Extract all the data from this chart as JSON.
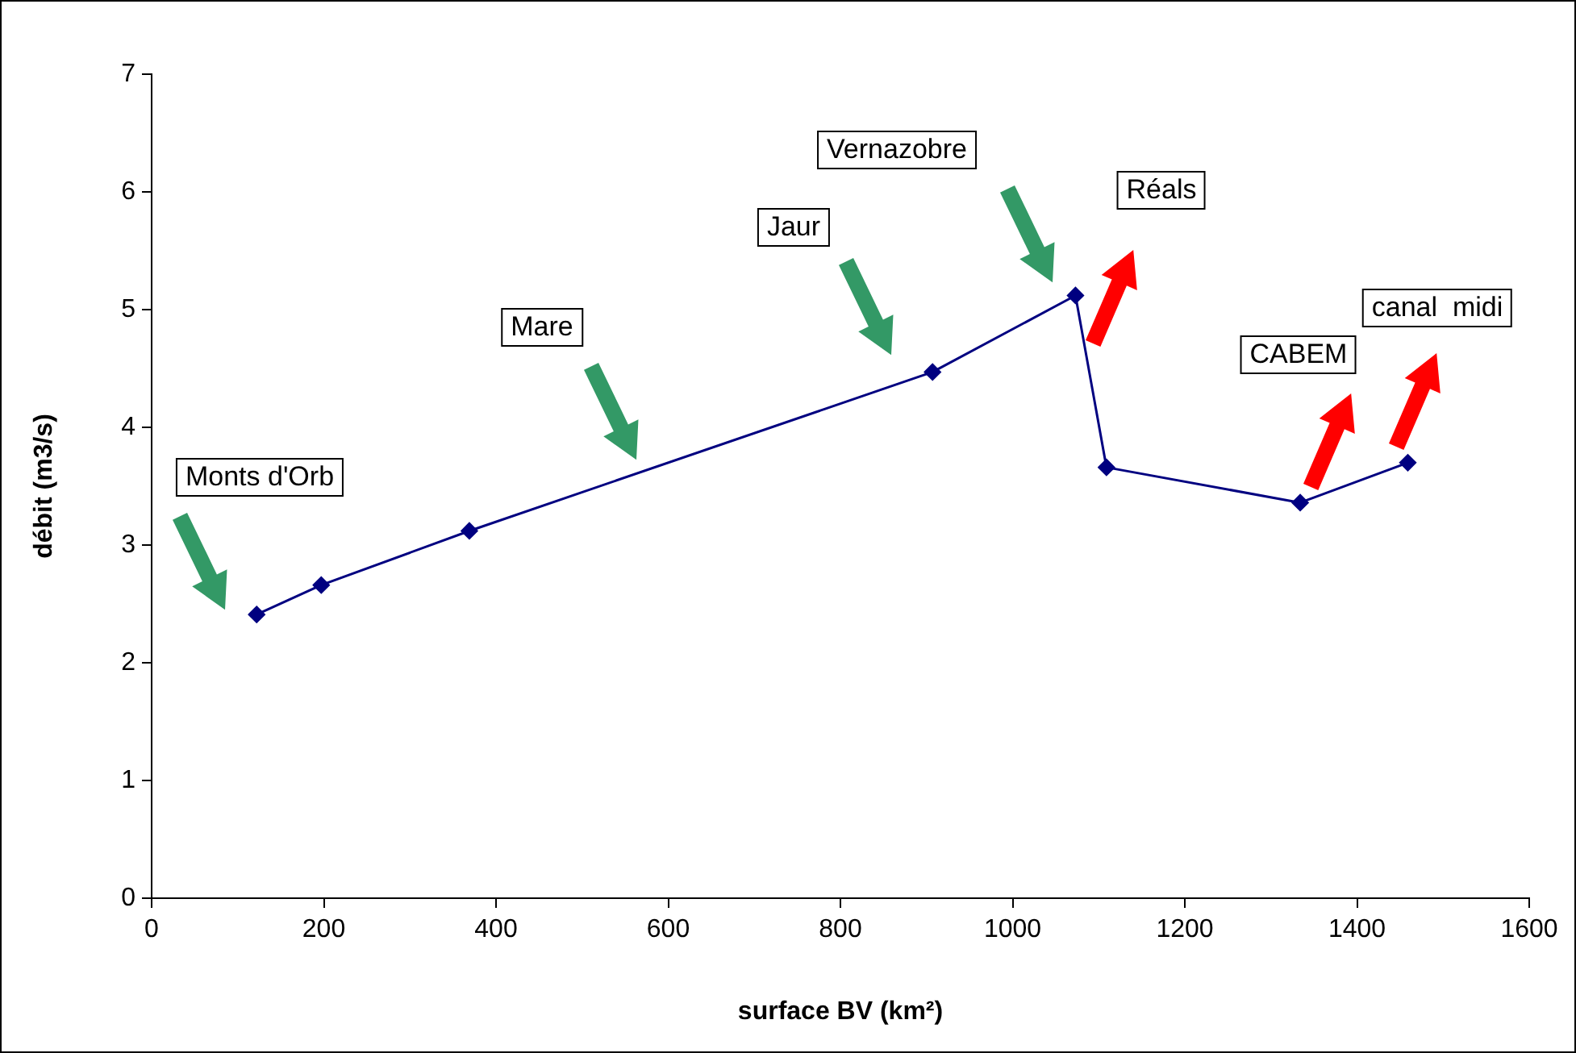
{
  "chart_data": {
    "type": "line",
    "xlabel": "surface BV (km²)",
    "ylabel": "débit (m3/s)",
    "x": [
      122,
      197,
      369,
      907,
      1073,
      1109,
      1334,
      1459
    ],
    "series": [
      {
        "color": "#000080",
        "values": [
          2.41,
          2.66,
          3.12,
          4.47,
          5.12,
          3.66,
          3.36,
          3.7
        ]
      }
    ],
    "xlim": [
      0,
      1600
    ],
    "xticks": [
      0,
      200,
      400,
      600,
      800,
      1000,
      1200,
      1400,
      1600
    ],
    "ylim": [
      0,
      7
    ],
    "yticks": [
      0,
      1,
      2,
      3,
      4,
      5,
      6,
      7
    ],
    "grid": false,
    "legend": false,
    "marker": "diamond",
    "line_style": "solid",
    "annotations": [
      "Monts d'Orb",
      "Mare",
      "Jaur",
      "Vernazobre",
      "Réals",
      "CABEM",
      "canal  midi"
    ]
  }
}
